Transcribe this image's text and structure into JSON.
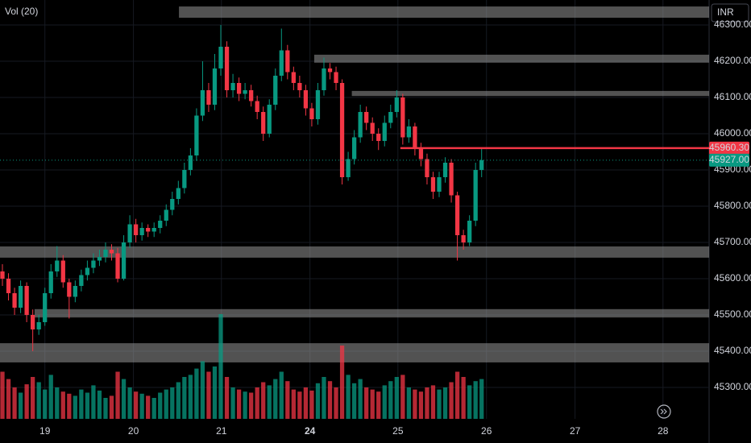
{
  "chart_data": {
    "type": "candlestick",
    "title": "Vol (20)",
    "currency": "INR",
    "up_color": "#089981",
    "down_color": "#f23645",
    "open": [
      45620,
      45600,
      45560,
      45520,
      45580,
      45500,
      45460,
      45480,
      45560,
      45620,
      45650,
      45590,
      45550,
      45580,
      45610,
      45630,
      45650,
      45660,
      45680,
      45670,
      45600,
      45700,
      45750,
      45720,
      45740,
      45730,
      45740,
      45760,
      45790,
      45820,
      45850,
      45900,
      45940,
      46050,
      46120,
      46080,
      46180,
      46240,
      46120,
      46140,
      46110,
      46120,
      46090,
      46060,
      46000,
      46080,
      46160,
      46230,
      46170,
      46140,
      46120,
      46070,
      46040,
      46120,
      46180,
      46170,
      46140,
      45880,
      45930,
      45990,
      46060,
      46030,
      46000,
      45980,
      46030,
      46060,
      46100,
      45990,
      46020,
      45960,
      45930,
      45880,
      45840,
      45880,
      45920,
      45830,
      45720,
      45700,
      45760,
      45900
    ],
    "high": [
      45640,
      45615,
      45575,
      45595,
      45590,
      45515,
      45500,
      45575,
      45640,
      45690,
      45665,
      45600,
      45595,
      45625,
      45650,
      45670,
      45680,
      45700,
      45695,
      45685,
      45720,
      45775,
      45765,
      45755,
      45750,
      45755,
      45775,
      45805,
      45840,
      45870,
      45920,
      45960,
      46070,
      46200,
      46140,
      46220,
      46300,
      46255,
      46165,
      46155,
      46140,
      46135,
      46105,
      46075,
      46095,
      46180,
      46290,
      46245,
      46185,
      46160,
      46135,
      46085,
      46140,
      46210,
      46195,
      46185,
      46150,
      45950,
      46010,
      46080,
      46075,
      46045,
      46015,
      46050,
      46080,
      46120,
      46110,
      46040,
      46030,
      45975,
      45945,
      45895,
      45895,
      45935,
      45930,
      45840,
      45735,
      45775,
      45920,
      45960
    ],
    "low": [
      45580,
      45540,
      45500,
      45505,
      45480,
      45400,
      45445,
      45470,
      45545,
      45605,
      45575,
      45490,
      45535,
      45565,
      45595,
      45615,
      45635,
      45645,
      45650,
      45590,
      45595,
      45685,
      45700,
      45705,
      45715,
      45715,
      45725,
      45745,
      45775,
      45805,
      45835,
      45885,
      45925,
      46035,
      46060,
      46065,
      46160,
      46100,
      46100,
      46090,
      46095,
      46075,
      46040,
      45980,
      45990,
      46065,
      46145,
      46150,
      46120,
      46100,
      46050,
      46020,
      46025,
      46105,
      46150,
      46120,
      45860,
      45870,
      45915,
      45975,
      46010,
      45980,
      45955,
      45965,
      46015,
      46045,
      45970,
      45975,
      45940,
      45910,
      45860,
      45820,
      45825,
      45865,
      45810,
      45650,
      45680,
      45690,
      45745,
      45880
    ],
    "close": [
      45600,
      45560,
      45520,
      45580,
      45500,
      45460,
      45480,
      45560,
      45620,
      45650,
      45590,
      45550,
      45580,
      45610,
      45630,
      45650,
      45660,
      45680,
      45670,
      45600,
      45700,
      45750,
      45720,
      45740,
      45730,
      45740,
      45760,
      45790,
      45820,
      45850,
      45900,
      45940,
      46050,
      46120,
      46080,
      46180,
      46240,
      46120,
      46140,
      46110,
      46120,
      46090,
      46060,
      46000,
      46080,
      46160,
      46230,
      46170,
      46140,
      46120,
      46070,
      46040,
      46120,
      46180,
      46170,
      46140,
      45880,
      45930,
      45990,
      46060,
      46030,
      46000,
      45980,
      46030,
      46060,
      46100,
      45990,
      46020,
      45960,
      45930,
      45880,
      45840,
      45880,
      45920,
      45830,
      45720,
      45700,
      45760,
      45900,
      45927
    ],
    "volume": [
      45,
      38,
      30,
      25,
      33,
      40,
      35,
      28,
      42,
      30,
      26,
      24,
      22,
      28,
      25,
      32,
      27,
      20,
      22,
      45,
      38,
      30,
      26,
      24,
      22,
      20,
      25,
      28,
      30,
      35,
      40,
      42,
      48,
      55,
      45,
      50,
      100,
      40,
      30,
      28,
      26,
      25,
      30,
      35,
      32,
      38,
      45,
      36,
      28,
      26,
      30,
      27,
      34,
      40,
      36,
      30,
      70,
      42,
      34,
      38,
      30,
      28,
      26,
      32,
      36,
      40,
      42,
      30,
      28,
      26,
      30,
      32,
      28,
      30,
      35,
      45,
      40,
      32,
      36,
      38
    ],
    "xlim": [
      -0.4,
      116.5
    ],
    "xticks": [
      {
        "value": 7.0,
        "label": "19"
      },
      {
        "value": 21.6,
        "label": "20"
      },
      {
        "value": 36.1,
        "label": "21"
      },
      {
        "value": 50.7,
        "label": "24"
      },
      {
        "value": 65.2,
        "label": "25"
      },
      {
        "value": 79.8,
        "label": "26"
      },
      {
        "value": 94.4,
        "label": "27"
      },
      {
        "value": 108.9,
        "label": "28"
      }
    ],
    "ylim": [
      45213.3,
      46368.9
    ],
    "yticks": [
      {
        "value": 46300,
        "label": "46300.00"
      },
      {
        "value": 46200,
        "label": "46200.00"
      },
      {
        "value": 46100,
        "label": "46100.00"
      },
      {
        "value": 46000,
        "label": "46000.00"
      },
      {
        "value": 45900,
        "label": "45900.00"
      },
      {
        "value": 45800,
        "label": "45800.00"
      },
      {
        "value": 45700,
        "label": "45700.00"
      },
      {
        "value": 45600,
        "label": "45600.00"
      },
      {
        "value": 45500,
        "label": "45500.00"
      },
      {
        "value": 45400,
        "label": "45400.00"
      },
      {
        "value": 45300,
        "label": "45300.00"
      }
    ],
    "zones": [
      {
        "from": 46320,
        "to": 46351,
        "start": 29.1
      },
      {
        "from": 46196,
        "to": 46218,
        "start": 51.4
      },
      {
        "from": 46104,
        "to": 46118,
        "start": 57.6
      },
      {
        "from": 45658,
        "to": 45689,
        "start": -0.4
      },
      {
        "from": 45493,
        "to": 45516,
        "start": 5.3
      },
      {
        "from": 45369,
        "to": 45422,
        "start": -0.4
      }
    ],
    "level": {
      "value": 45960.3,
      "label": "45960.30",
      "start": 65.6,
      "color": "#f23645"
    },
    "last_price": {
      "value": 45927,
      "label": "45927.00",
      "color": "#089981"
    },
    "grid": true
  }
}
